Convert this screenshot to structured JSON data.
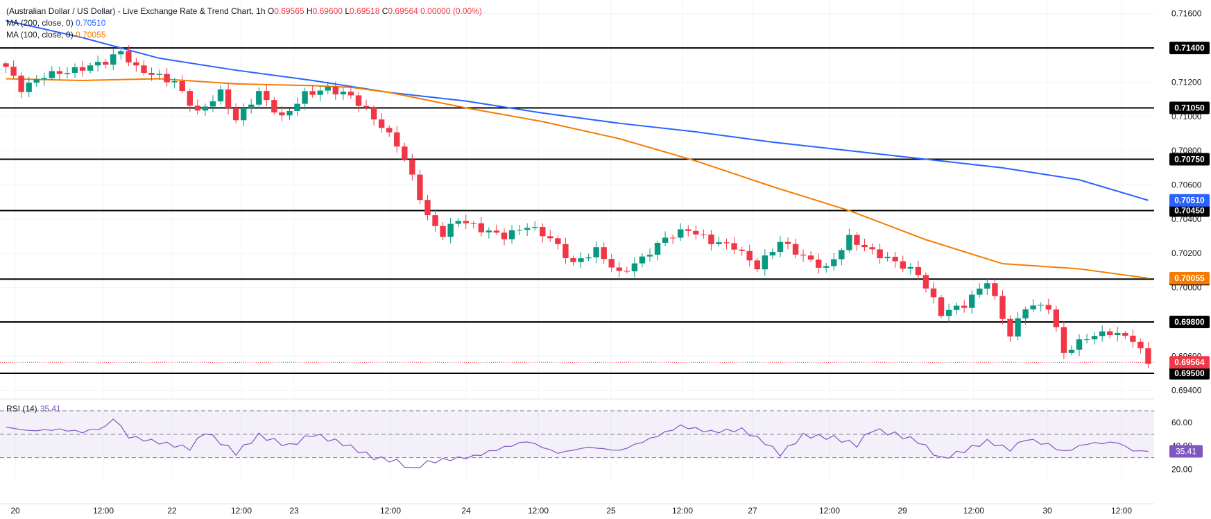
{
  "header": {
    "title": "(Australian Dollar / US Dollar) - Live Exchange Rate & Trend Chart, 1h",
    "open_label": "O",
    "open": "0.69565",
    "high_label": "H",
    "high": "0.69600",
    "low_label": "L",
    "low": "0.69518",
    "close_label": "C",
    "close": "0.69564",
    "change": "0.00000 (0.00%)"
  },
  "indicators": [
    {
      "label": "MA (200, close, 0)",
      "value": "0.70510",
      "color": "#2962ff"
    },
    {
      "label": "MA (100, close, 0)",
      "value": "0.70055",
      "color": "#f57c00"
    }
  ],
  "rsi": {
    "label": "RSI (14)",
    "value": "35.41",
    "levels": [
      70,
      50,
      30
    ],
    "ticks": [
      "60.00",
      "40.00",
      "20.00"
    ],
    "color": "#7e57c2"
  },
  "chart_data": {
    "type": "candlestick",
    "symbol": "AUDUSD",
    "interval": "1h",
    "price_axis": {
      "min": 0.6935,
      "max": 0.7168,
      "ticks": [
        "0.71600",
        "0.71200",
        "0.71000",
        "0.70800",
        "0.70600",
        "0.70400",
        "0.70200",
        "0.70000",
        "0.69600",
        "0.69400"
      ]
    },
    "horizontal_levels": [
      "0.71400",
      "0.71050",
      "0.70750",
      "0.70450",
      "0.70050",
      "0.69800",
      "0.69500"
    ],
    "current_price": "0.69564",
    "ma200_label": "0.70510",
    "ma100_label": "0.70055",
    "time_labels": [
      "20",
      "12:00",
      "22",
      "12:00",
      "23",
      "12:00",
      "24",
      "12:00",
      "25",
      "12:00",
      "27",
      "12:00",
      "29",
      "12:00",
      "30",
      "12:00"
    ],
    "ma200": [
      [
        0,
        0.7156
      ],
      [
        10,
        0.7146
      ],
      [
        20,
        0.7134
      ],
      [
        30,
        0.7127
      ],
      [
        40,
        0.7121
      ],
      [
        50,
        0.7114
      ],
      [
        60,
        0.7109
      ],
      [
        70,
        0.7102
      ],
      [
        80,
        0.7096
      ],
      [
        90,
        0.7091
      ],
      [
        100,
        0.7085
      ],
      [
        110,
        0.708
      ],
      [
        120,
        0.7075
      ],
      [
        130,
        0.707
      ],
      [
        140,
        0.7063
      ],
      [
        149,
        0.7051
      ]
    ],
    "ma100": [
      [
        0,
        0.7122
      ],
      [
        10,
        0.7121
      ],
      [
        20,
        0.7122
      ],
      [
        30,
        0.7119
      ],
      [
        40,
        0.7118
      ],
      [
        45,
        0.7117
      ],
      [
        50,
        0.7114
      ],
      [
        60,
        0.7105
      ],
      [
        70,
        0.7097
      ],
      [
        80,
        0.7087
      ],
      [
        90,
        0.7074
      ],
      [
        100,
        0.7059
      ],
      [
        110,
        0.7045
      ],
      [
        120,
        0.7028
      ],
      [
        130,
        0.7014
      ],
      [
        140,
        0.7011
      ],
      [
        149,
        0.70055
      ]
    ],
    "close_path": [
      [
        0,
        0.7129
      ],
      [
        2,
        0.7116
      ],
      [
        5,
        0.7124
      ],
      [
        9,
        0.7127
      ],
      [
        13,
        0.7132
      ],
      [
        15,
        0.7138
      ],
      [
        17,
        0.7128
      ],
      [
        22,
        0.712
      ],
      [
        25,
        0.7102
      ],
      [
        28,
        0.7114
      ],
      [
        30,
        0.7098
      ],
      [
        33,
        0.7114
      ],
      [
        36,
        0.7099
      ],
      [
        39,
        0.7113
      ],
      [
        42,
        0.7116
      ],
      [
        45,
        0.7112
      ],
      [
        48,
        0.7099
      ],
      [
        51,
        0.7084
      ],
      [
        53,
        0.7065
      ],
      [
        55,
        0.7041
      ],
      [
        57,
        0.7031
      ],
      [
        59,
        0.704
      ],
      [
        62,
        0.7034
      ],
      [
        65,
        0.703
      ],
      [
        68,
        0.7036
      ],
      [
        71,
        0.7029
      ],
      [
        74,
        0.7014
      ],
      [
        77,
        0.7022
      ],
      [
        80,
        0.7008
      ],
      [
        83,
        0.7017
      ],
      [
        86,
        0.7029
      ],
      [
        89,
        0.7034
      ],
      [
        92,
        0.7027
      ],
      [
        95,
        0.7024
      ],
      [
        98,
        0.7012
      ],
      [
        101,
        0.7027
      ],
      [
        104,
        0.7018
      ],
      [
        107,
        0.7011
      ],
      [
        110,
        0.7029
      ],
      [
        113,
        0.7021
      ],
      [
        116,
        0.7015
      ],
      [
        119,
        0.7008
      ],
      [
        122,
        0.6985
      ],
      [
        125,
        0.699
      ],
      [
        128,
        0.7004
      ],
      [
        131,
        0.6972
      ],
      [
        133,
        0.6989
      ],
      [
        136,
        0.6989
      ],
      [
        138,
        0.6962
      ],
      [
        141,
        0.6971
      ],
      [
        144,
        0.6974
      ],
      [
        147,
        0.697
      ],
      [
        149,
        0.6956
      ]
    ],
    "rsi_path": [
      [
        0,
        56
      ],
      [
        3,
        53
      ],
      [
        7,
        54
      ],
      [
        10,
        52
      ],
      [
        13,
        56
      ],
      [
        14,
        64
      ],
      [
        16,
        48
      ],
      [
        20,
        43
      ],
      [
        24,
        38
      ],
      [
        26,
        52
      ],
      [
        30,
        34
      ],
      [
        33,
        49
      ],
      [
        37,
        40
      ],
      [
        40,
        50
      ],
      [
        44,
        42
      ],
      [
        48,
        30
      ],
      [
        51,
        27
      ],
      [
        53,
        20
      ],
      [
        55,
        26
      ],
      [
        57,
        28
      ],
      [
        61,
        31
      ],
      [
        64,
        37
      ],
      [
        68,
        44
      ],
      [
        72,
        34
      ],
      [
        76,
        39
      ],
      [
        80,
        36
      ],
      [
        84,
        46
      ],
      [
        88,
        57
      ],
      [
        92,
        52
      ],
      [
        96,
        54
      ],
      [
        99,
        43
      ],
      [
        101,
        33
      ],
      [
        104,
        49
      ],
      [
        108,
        47
      ],
      [
        111,
        41
      ],
      [
        113,
        54
      ],
      [
        116,
        50
      ],
      [
        119,
        44
      ],
      [
        122,
        29
      ],
      [
        125,
        36
      ],
      [
        128,
        44
      ],
      [
        131,
        37
      ],
      [
        133,
        46
      ],
      [
        136,
        41
      ],
      [
        138,
        35
      ],
      [
        141,
        42
      ],
      [
        145,
        43
      ],
      [
        147,
        36
      ],
      [
        149,
        35.41
      ]
    ]
  }
}
